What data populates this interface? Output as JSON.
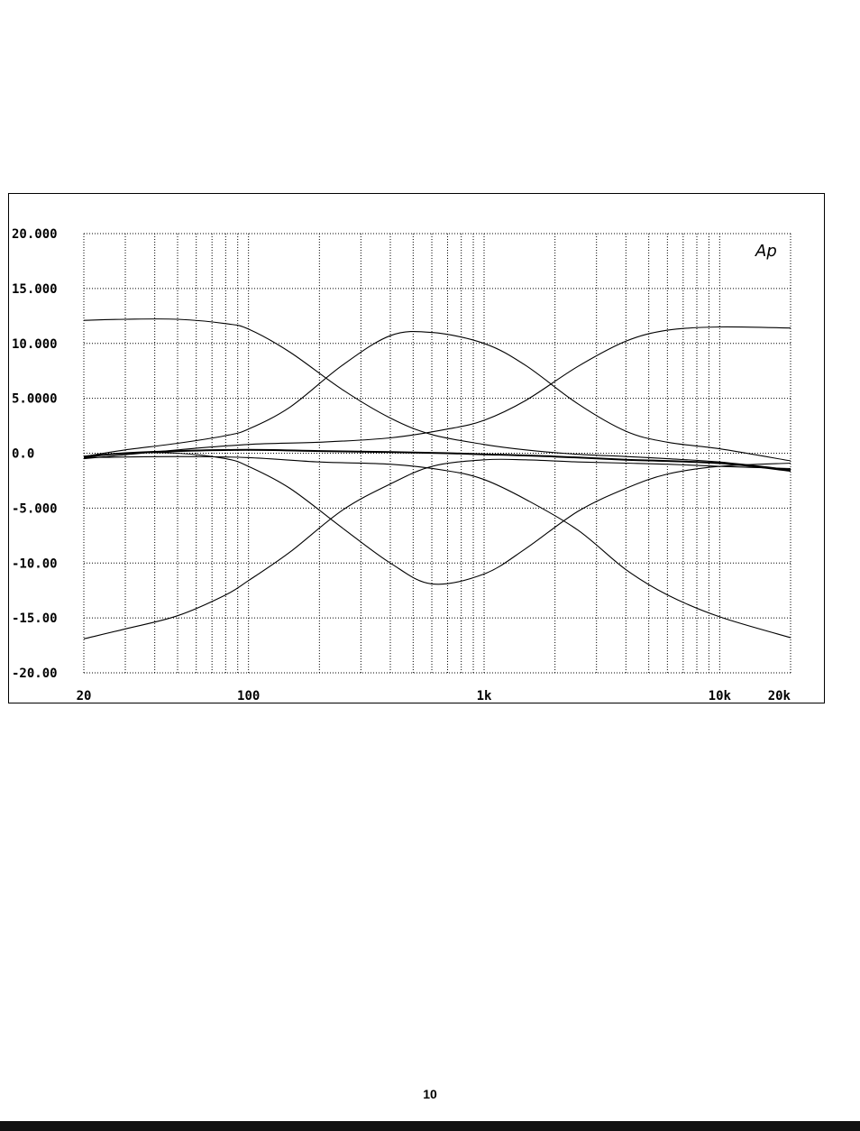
{
  "page": {
    "page_number": "10"
  },
  "chart_data": {
    "type": "line",
    "title": "",
    "xlabel": "",
    "ylabel": "",
    "x_scale": "log",
    "xlim": [
      20,
      20000
    ],
    "ylim": [
      -20,
      20
    ],
    "grid": true,
    "logo": "Ap",
    "y_ticks": [
      {
        "value": 20,
        "label": "20.000"
      },
      {
        "value": 15,
        "label": "15.000"
      },
      {
        "value": 10,
        "label": "10.000"
      },
      {
        "value": 5,
        "label": "5.0000"
      },
      {
        "value": 0,
        "label": "0.0"
      },
      {
        "value": -5,
        "label": "-5.000"
      },
      {
        "value": -10,
        "label": "-10.00"
      },
      {
        "value": -15,
        "label": "-15.00"
      },
      {
        "value": -20,
        "label": "-20.00"
      }
    ],
    "x_ticks": [
      {
        "value": 20,
        "label": "20"
      },
      {
        "value": 100,
        "label": "100"
      },
      {
        "value": 1000,
        "label": "1k"
      },
      {
        "value": 10000,
        "label": "10k"
      },
      {
        "value": 20000,
        "label": "20k"
      }
    ],
    "series": [
      {
        "x": [
          20,
          30,
          50,
          80,
          100,
          150,
          250,
          400,
          600,
          1000,
          1500,
          2500,
          4000,
          6000,
          10000,
          20000
        ],
        "y": [
          12.1,
          12.2,
          12.2,
          11.8,
          11.3,
          9.2,
          5.8,
          3.2,
          1.7,
          0.8,
          0.3,
          -0.1,
          -0.3,
          -0.5,
          -0.8,
          -1.5
        ]
      },
      {
        "x": [
          20,
          30,
          50,
          80,
          100,
          150,
          250,
          400,
          600,
          1000,
          1500,
          2500,
          4000,
          6000,
          10000,
          20000
        ],
        "y": [
          -0.3,
          0.3,
          0.9,
          1.6,
          2.2,
          4.2,
          8.0,
          10.7,
          11.0,
          10.0,
          8.0,
          4.5,
          2.0,
          1.0,
          0.4,
          -0.7
        ]
      },
      {
        "x": [
          20,
          50,
          100,
          200,
          400,
          700,
          1000,
          1500,
          2500,
          4000,
          6000,
          10000,
          20000
        ],
        "y": [
          -0.5,
          0.3,
          0.8,
          1.0,
          1.4,
          2.2,
          3.0,
          4.8,
          7.9,
          10.2,
          11.2,
          11.5,
          11.4
        ]
      },
      {
        "x": [
          20,
          30,
          50,
          80,
          100,
          150,
          250,
          400,
          600,
          1000,
          1500,
          2500,
          4000,
          6000,
          10000,
          20000
        ],
        "y": [
          -0.4,
          0.0,
          0.0,
          -0.5,
          -1.2,
          -3.2,
          -6.8,
          -10.0,
          -11.9,
          -11.0,
          -8.7,
          -5.3,
          -3.2,
          -1.9,
          -1.2,
          -0.9
        ]
      },
      {
        "x": [
          20,
          50,
          100,
          200,
          400,
          700,
          1000,
          1500,
          2500,
          4000,
          6000,
          10000,
          20000
        ],
        "y": [
          -0.4,
          -0.3,
          -0.4,
          -0.8,
          -1.0,
          -1.6,
          -2.4,
          -4.2,
          -7.0,
          -10.6,
          -12.9,
          -14.9,
          -16.8
        ]
      },
      {
        "x": [
          20,
          30,
          50,
          80,
          100,
          150,
          250,
          400,
          600,
          1000,
          1500,
          2500,
          4000,
          6000,
          10000,
          20000
        ],
        "y": [
          -16.9,
          -16.0,
          -14.8,
          -12.9,
          -11.6,
          -9.0,
          -5.2,
          -2.8,
          -1.2,
          -0.6,
          -0.6,
          -0.8,
          -0.9,
          -1.0,
          -1.2,
          -1.4
        ]
      },
      {
        "x": [
          20,
          30,
          50,
          100,
          200,
          400,
          700,
          1000,
          2000,
          4000,
          10000,
          20000
        ],
        "y": [
          -0.3,
          0.0,
          0.2,
          0.3,
          0.2,
          0.1,
          0.0,
          -0.1,
          -0.3,
          -0.6,
          -0.9,
          -1.6
        ]
      }
    ]
  }
}
